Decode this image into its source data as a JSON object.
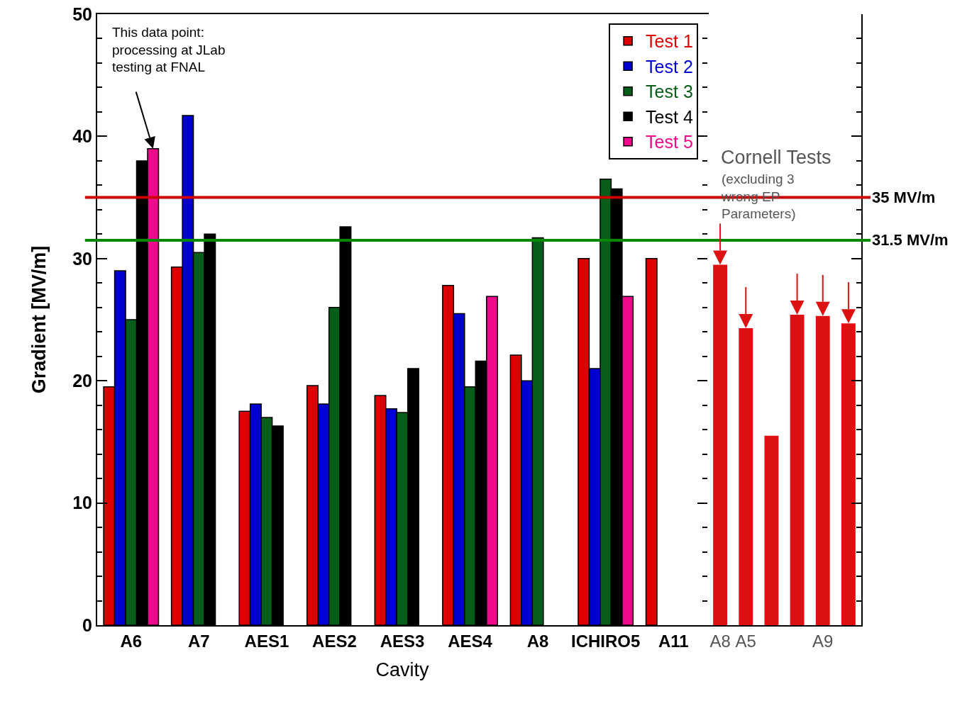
{
  "chart_data": [
    {
      "type": "bar",
      "xlabel": "Cavity",
      "ylabel": "Gradient [MV/m]",
      "categories": [
        "A6",
        "A7",
        "AES1",
        "AES2",
        "AES3",
        "AES4",
        "A8",
        "ICHIRO5",
        "A11"
      ],
      "series": [
        {
          "name": "Test 1",
          "color": "#dd0000",
          "values": [
            19.5,
            29.3,
            17.5,
            19.6,
            18.8,
            27.8,
            22.1,
            30,
            30
          ]
        },
        {
          "name": "Test 2",
          "color": "#0000d0",
          "values": [
            29,
            41.7,
            18.1,
            18.1,
            17.7,
            25.5,
            20,
            21,
            null
          ]
        },
        {
          "name": "Test 3",
          "color": "#075e1b",
          "values": [
            25,
            30.5,
            17,
            26,
            17.4,
            19.5,
            31.7,
            36.5,
            null
          ]
        },
        {
          "name": "Test 4",
          "color": "#000000",
          "values": [
            38,
            32,
            16.3,
            32.6,
            21,
            21.6,
            null,
            35.7,
            null
          ]
        },
        {
          "name": "Test 5",
          "color": "#ee0a8a",
          "values": [
            39,
            null,
            null,
            null,
            null,
            26.9,
            null,
            26.9,
            null
          ]
        }
      ],
      "ylim": [
        0,
        50
      ],
      "yticks": [
        0,
        10,
        20,
        30,
        40,
        50
      ],
      "grid": false,
      "legend": "top right",
      "annotations": [
        "This data point:\nprocessing at JLab\ntesting at FNAL"
      ],
      "ref_lines": [
        {
          "axis": "y",
          "value": 35,
          "color": "#cc0000"
        },
        {
          "axis": "y",
          "value": 31.5,
          "color": "#008800"
        }
      ]
    },
    {
      "type": "bar",
      "categories": [
        "A8",
        "A5",
        null,
        null,
        "A9",
        null
      ],
      "values": [
        29.5,
        24.3,
        15.5,
        25.4,
        25.3,
        24.7
      ],
      "color": "#dd1111",
      "ylim": [
        0,
        50
      ],
      "yticks": [
        0,
        10,
        20,
        30,
        40,
        50
      ],
      "tick_labels": "x",
      "legend": false,
      "annotations": [
        "Cornell Tests",
        "(excluding 3\nwrong EP\nParameters)"
      ],
      "ref_lines": [
        {
          "axis": "y",
          "value": 35,
          "label": "35 MV/m",
          "color": "#cc0000"
        },
        {
          "axis": "y",
          "value": 31.5,
          "label": "31.5 MV/m",
          "color": "#008800"
        }
      ]
    }
  ]
}
